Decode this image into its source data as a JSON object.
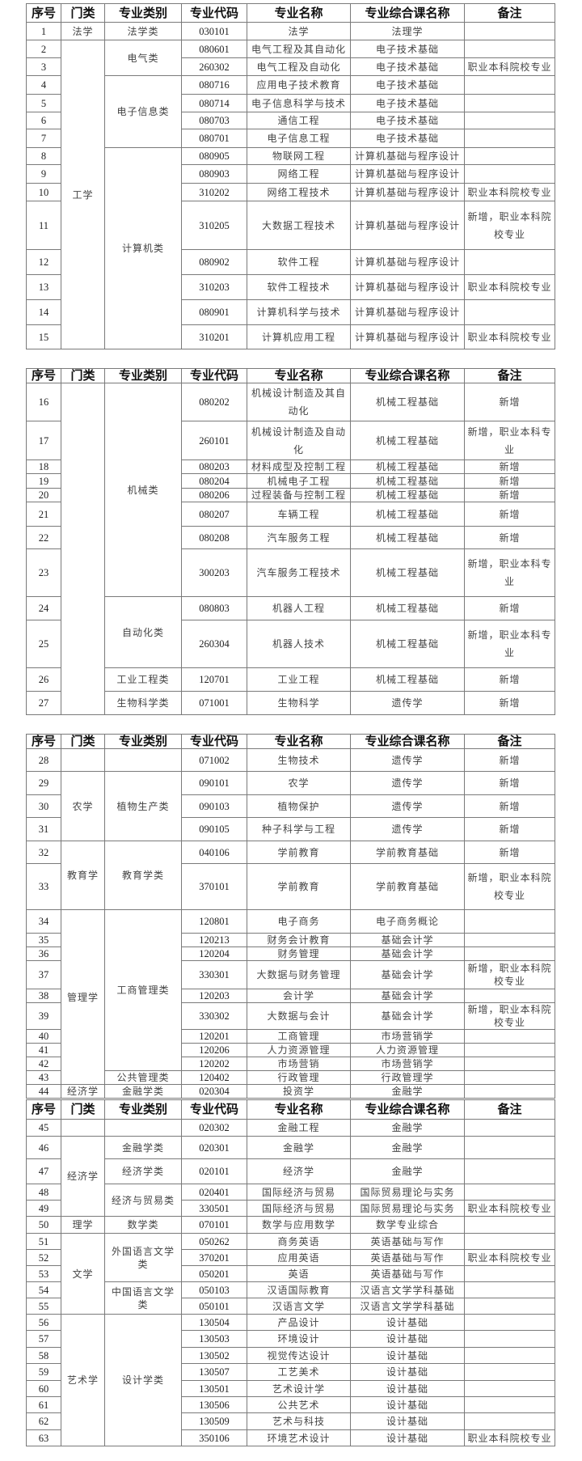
{
  "headers": [
    "序号",
    "门类",
    "专业类别",
    "专业代码",
    "专业名称",
    "专业综合课名称",
    "备注"
  ],
  "tables": [
    {
      "men": [
        {
          "label": "法学",
          "span": 1
        },
        {
          "label": "工学",
          "span": 14
        }
      ],
      "lei": [
        {
          "label": "法学类",
          "span": 1
        },
        {
          "label": "电气类",
          "span": 2
        },
        {
          "label": "电子信息类",
          "span": 4
        },
        {
          "label": "计算机类",
          "span": 8
        }
      ],
      "rows": [
        [
          "1",
          "030101",
          "法学",
          "法理学",
          ""
        ],
        [
          "2",
          "080601",
          "电气工程及其自动化",
          "电子技术基础",
          ""
        ],
        [
          "3",
          "260302",
          "电气工程及自动化",
          "电子技术基础",
          "职业本科院校专业"
        ],
        [
          "4",
          "080716",
          "应用电子技术教育",
          "电子技术基础",
          ""
        ],
        [
          "5",
          "080714",
          "电子信息科学与技术",
          "电子技术基础",
          ""
        ],
        [
          "6",
          "080703",
          "通信工程",
          "电子技术基础",
          ""
        ],
        [
          "7",
          "080701",
          "电子信息工程",
          "电子技术基础",
          ""
        ],
        [
          "8",
          "080905",
          "物联网工程",
          "计算机基础与程序设计",
          ""
        ],
        [
          "9",
          "080903",
          "网络工程",
          "计算机基础与程序设计",
          ""
        ],
        [
          "10",
          "310202",
          "网络工程技术",
          "计算机基础与程序设计",
          "职业本科院校专业"
        ],
        [
          "11",
          "310205",
          "大数据工程技术",
          "计算机基础与程序设计",
          "新增，职业本科院校专业"
        ],
        [
          "12",
          "080902",
          "软件工程",
          "计算机基础与程序设计",
          ""
        ],
        [
          "13",
          "310203",
          "软件工程技术",
          "计算机基础与程序设计",
          "职业本科院校专业"
        ],
        [
          "14",
          "080901",
          "计算机科学与技术",
          "计算机基础与程序设计",
          ""
        ],
        [
          "15",
          "310201",
          "计算机应用工程",
          "计算机基础与程序设计",
          "职业本科院校专业"
        ]
      ]
    },
    {
      "men": [
        {
          "label": "",
          "span": 12
        }
      ],
      "lei": [
        {
          "label": "机械类",
          "span": 8
        },
        {
          "label": "自动化类",
          "span": 2
        },
        {
          "label": "工业工程类",
          "span": 1
        },
        {
          "label": "生物科学类",
          "span": 1
        }
      ],
      "rows": [
        [
          "16",
          "080202",
          "机械设计制造及其自动化",
          "机械工程基础",
          "新增"
        ],
        [
          "17",
          "260101",
          "机械设计制造及自动化",
          "机械工程基础",
          "新增，职业本科专业"
        ],
        [
          "18",
          "080203",
          "材料成型及控制工程",
          "机械工程基础",
          "新增"
        ],
        [
          "19",
          "080204",
          "机械电子工程",
          "机械工程基础",
          "新增"
        ],
        [
          "20",
          "080206",
          "过程装备与控制工程",
          "机械工程基础",
          "新增"
        ],
        [
          "21",
          "080207",
          "车辆工程",
          "机械工程基础",
          "新增"
        ],
        [
          "22",
          "080208",
          "汽车服务工程",
          "机械工程基础",
          "新增"
        ],
        [
          "23",
          "300203",
          "汽车服务工程技术",
          "机械工程基础",
          "新增，职业本科专业"
        ],
        [
          "24",
          "080803",
          "机器人工程",
          "机械工程基础",
          "新增"
        ],
        [
          "25",
          "260304",
          "机器人技术",
          "机械工程基础",
          "新增，职业本科专业"
        ],
        [
          "26",
          "120701",
          "工业工程",
          "机械工程基础",
          "新增"
        ],
        [
          "27",
          "071001",
          "生物科学",
          "遗传学",
          "新增"
        ]
      ]
    },
    {
      "men": [
        {
          "label": "",
          "span": 1
        },
        {
          "label": "农学",
          "span": 3
        },
        {
          "label": "教育学",
          "span": 2
        },
        {
          "label": "管理学",
          "span": 10
        },
        {
          "label": "经济学",
          "span": 1
        }
      ],
      "lei": [
        {
          "label": "",
          "span": 1
        },
        {
          "label": "植物生产类",
          "span": 3
        },
        {
          "label": "教育学类",
          "span": 2
        },
        {
          "label": "工商管理类",
          "span": 9
        },
        {
          "label": "公共管理类",
          "span": 1
        },
        {
          "label": "金融学类",
          "span": 1
        }
      ],
      "rows": [
        [
          "28",
          "071002",
          "生物技术",
          "遗传学",
          "新增"
        ],
        [
          "29",
          "090101",
          "农学",
          "遗传学",
          "新增"
        ],
        [
          "30",
          "090103",
          "植物保护",
          "遗传学",
          "新增"
        ],
        [
          "31",
          "090105",
          "种子科学与工程",
          "遗传学",
          "新增"
        ],
        [
          "32",
          "040106",
          "学前教育",
          "学前教育基础",
          "新增"
        ],
        [
          "33",
          "370101",
          "学前教育",
          "学前教育基础",
          "新增，职业本科院校专业"
        ],
        [
          "34",
          "120801",
          "电子商务",
          "电子商务概论",
          ""
        ],
        [
          "35",
          "120213",
          "财务会计教育",
          "基础会计学",
          ""
        ],
        [
          "36",
          "120204",
          "财务管理",
          "基础会计学",
          ""
        ],
        [
          "37",
          "330301",
          "大数据与财务管理",
          "基础会计学",
          "新增，职业本科院校专业"
        ],
        [
          "38",
          "120203",
          "会计学",
          "基础会计学",
          ""
        ],
        [
          "39",
          "330302",
          "大数据与会计",
          "基础会计学",
          "新增，职业本科院校专业"
        ],
        [
          "40",
          "120201",
          "工商管理",
          "市场营销学",
          ""
        ],
        [
          "41",
          "120206",
          "人力资源管理",
          "人力资源管理",
          ""
        ],
        [
          "42",
          "120202",
          "市场营销",
          "市场营销学",
          ""
        ],
        [
          "43",
          "120402",
          "行政管理",
          "行政管理学",
          ""
        ],
        [
          "44",
          "020304",
          "投资学",
          "金融学",
          ""
        ]
      ]
    },
    {
      "men": [
        {
          "label": "",
          "span": 1
        },
        {
          "label": "经济学",
          "span": 4
        },
        {
          "label": "理学",
          "span": 1
        },
        {
          "label": "文学",
          "span": 5
        },
        {
          "label": "艺术学",
          "span": 8
        }
      ],
      "lei": [
        {
          "label": "",
          "span": 1
        },
        {
          "label": "金融学类",
          "span": 1
        },
        {
          "label": "经济学类",
          "span": 1
        },
        {
          "label": "经济与贸易类",
          "span": 2
        },
        {
          "label": "数学类",
          "span": 1
        },
        {
          "label": "外国语言文学类",
          "span": 3
        },
        {
          "label": "中国语言文学类",
          "span": 2
        },
        {
          "label": "设计学类",
          "span": 8
        }
      ],
      "rows": [
        [
          "45",
          "020302",
          "金融工程",
          "金融学",
          ""
        ],
        [
          "46",
          "020301",
          "金融学",
          "金融学",
          ""
        ],
        [
          "47",
          "020101",
          "经济学",
          "金融学",
          ""
        ],
        [
          "48",
          "020401",
          "国际经济与贸易",
          "国际贸易理论与实务",
          ""
        ],
        [
          "49",
          "330501",
          "国际经济与贸易",
          "国际贸易理论与实务",
          "职业本科院校专业"
        ],
        [
          "50",
          "070101",
          "数学与应用数学",
          "数学专业综合",
          ""
        ],
        [
          "51",
          "050262",
          "商务英语",
          "英语基础与写作",
          ""
        ],
        [
          "52",
          "370201",
          "应用英语",
          "英语基础与写作",
          "职业本科院校专业"
        ],
        [
          "53",
          "050201",
          "英语",
          "英语基础与写作",
          ""
        ],
        [
          "54",
          "050103",
          "汉语国际教育",
          "汉语言文学学科基础",
          ""
        ],
        [
          "55",
          "050101",
          "汉语言文学",
          "汉语言文学学科基础",
          ""
        ],
        [
          "56",
          "130504",
          "产品设计",
          "设计基础",
          ""
        ],
        [
          "57",
          "130503",
          "环境设计",
          "设计基础",
          ""
        ],
        [
          "58",
          "130502",
          "视觉传达设计",
          "设计基础",
          ""
        ],
        [
          "59",
          "130507",
          "工艺美术",
          "设计基础",
          ""
        ],
        [
          "60",
          "130501",
          "艺术设计学",
          "设计基础",
          ""
        ],
        [
          "61",
          "130506",
          "公共艺术",
          "设计基础",
          ""
        ],
        [
          "62",
          "130509",
          "艺术与科技",
          "设计基础",
          ""
        ],
        [
          "63",
          "350106",
          "环境艺术设计",
          "设计基础",
          "职业本科院校专业"
        ]
      ]
    }
  ]
}
